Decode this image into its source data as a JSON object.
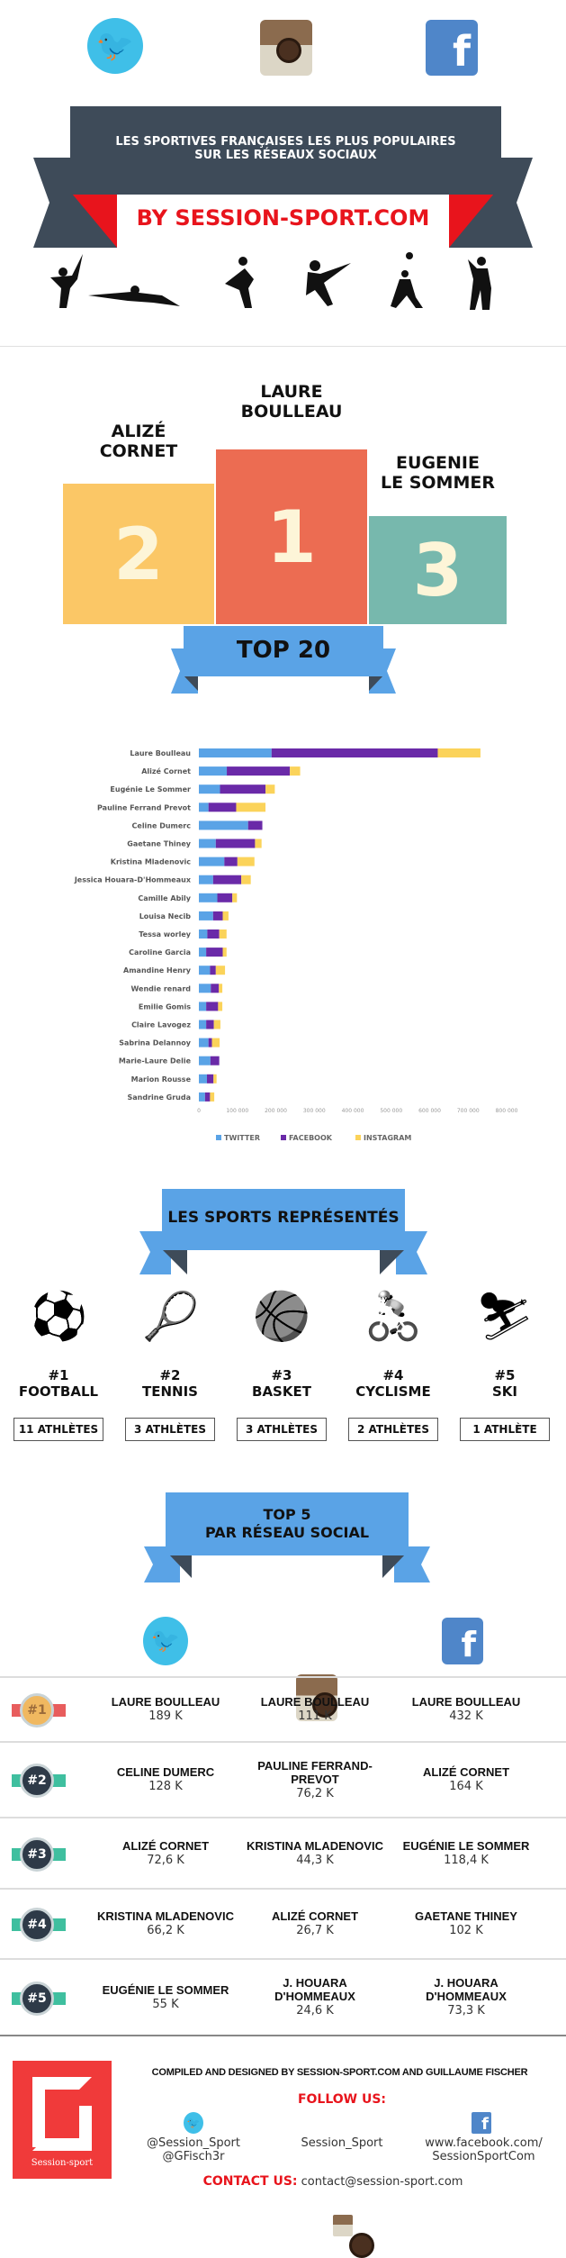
{
  "header": {
    "icons": [
      "twitter-icon",
      "instagram-icon",
      "facebook-icon"
    ],
    "title_line1": "Les sportives françaises les plus populaires",
    "title_line2": "sur les réseaux sociaux",
    "byline": "By session-sport.com",
    "colors": {
      "banner": "#3e4b59",
      "accent": "#e8141c"
    }
  },
  "podium": [
    {
      "rank": "2",
      "name_line1": "Alizé",
      "name_line2": "Cornet",
      "color": "#fbc766"
    },
    {
      "rank": "1",
      "name_line1": "Laure",
      "name_line2": "Boulleau",
      "color": "#ec6c52"
    },
    {
      "rank": "3",
      "name_line1": "Eugenie",
      "name_line2": "Le Sommer",
      "color": "#77b8ad"
    }
  ],
  "top20_title": "TOP 20",
  "chart_data": {
    "type": "bar",
    "orientation": "horizontal",
    "stacked": true,
    "categories": [
      "Laure Boulleau",
      "Alizé Cornet",
      "Eugénie Le Sommer",
      "Pauline Ferrand Prevot",
      "Celine Dumerc",
      "Gaetane Thiney",
      "Kristina Mladenovic",
      "Jessica Houara-D'Hommeaux",
      "Camille Abily",
      "Louisa Necib",
      "Tessa worley",
      "Caroline Garcia",
      "Amandine Henry",
      "Wendie renard",
      "Emilie Gomis",
      "Claire Lavogez",
      "Sabrina Delannoy",
      "Marie-Laure Delie",
      "Marion Rousse",
      "Sandrine Gruda"
    ],
    "series": [
      {
        "name": "TWITTER",
        "color": "#5aa3e6",
        "values": [
          189000,
          72600,
          55000,
          25000,
          128000,
          44000,
          66200,
          37000,
          48000,
          37000,
          22000,
          19000,
          29000,
          31000,
          19000,
          19000,
          25000,
          30000,
          21000,
          16000
        ]
      },
      {
        "name": "FACEBOOK",
        "color": "#6a2aa8",
        "values": [
          432000,
          164000,
          118400,
          72000,
          37000,
          102000,
          34000,
          73300,
          39000,
          25000,
          31000,
          43000,
          15000,
          21000,
          31000,
          20000,
          9000,
          23000,
          17000,
          13000
        ]
      },
      {
        "name": "INSTAGRAM",
        "color": "#fbd35a",
        "values": [
          111000,
          26700,
          24000,
          76200,
          0,
          17000,
          44300,
          24600,
          12000,
          15000,
          19000,
          10000,
          24000,
          9000,
          11000,
          17000,
          20000,
          0,
          8000,
          11000
        ]
      }
    ],
    "xlim": [
      0,
      800000
    ],
    "xticks": [
      "0",
      "100 000",
      "200 000",
      "300 000",
      "400 000",
      "500 000",
      "600 000",
      "700 000",
      "800 000"
    ],
    "legend_position": "bottom",
    "grid": false
  },
  "sports": {
    "title": "Les sports représentés",
    "items": [
      {
        "rank": "#1",
        "name": "Football",
        "count": "11 athlètes",
        "icon": "soccer-ball-icon"
      },
      {
        "rank": "#2",
        "name": "Tennis",
        "count": "3 athlètes",
        "icon": "tennis-racket-icon"
      },
      {
        "rank": "#3",
        "name": "Basket",
        "count": "3 athlètes",
        "icon": "basketball-icon"
      },
      {
        "rank": "#4",
        "name": "Cyclisme",
        "count": "2 athlètes",
        "icon": "cyclist-icon"
      },
      {
        "rank": "#5",
        "name": "Ski",
        "count": "1 athlète",
        "icon": "skier-icon"
      }
    ]
  },
  "top5": {
    "title_line1": "TOP 5",
    "title_line2": "par réseau social",
    "rows": [
      {
        "rank": "#1",
        "twitter": {
          "name": "Laure Boulleau",
          "value": "189 K"
        },
        "instagram": {
          "name": "Laure Boulleau",
          "value": "111 K"
        },
        "facebook": {
          "name": "Laure Boulleau",
          "value": "432 K"
        }
      },
      {
        "rank": "#2",
        "twitter": {
          "name": "Celine Dumerc",
          "value": "128 K"
        },
        "instagram": {
          "name": "Pauline Ferrand-Prevot",
          "value": "76,2 K"
        },
        "facebook": {
          "name": "Alizé Cornet",
          "value": "164 K"
        }
      },
      {
        "rank": "#3",
        "twitter": {
          "name": "Alizé Cornet",
          "value": "72,6 K"
        },
        "instagram": {
          "name": "Kristina Mladenovic",
          "value": "44,3 K"
        },
        "facebook": {
          "name": "Eugénie Le Sommer",
          "value": "118,4 K"
        }
      },
      {
        "rank": "#4",
        "twitter": {
          "name": "Kristina Mladenovic",
          "value": "66,2 K"
        },
        "instagram": {
          "name": "Alizé Cornet",
          "value": "26,7 K"
        },
        "facebook": {
          "name": "Gaetane Thiney",
          "value": "102 K"
        }
      },
      {
        "rank": "#5",
        "twitter": {
          "name": "Eugénie Le Sommer",
          "value": "55 K"
        },
        "instagram": {
          "name": "J. Houara D'Hommeaux",
          "value": "24,6 K"
        },
        "facebook": {
          "name": "J. Houara D'Hommeaux",
          "value": "73,3 K"
        }
      }
    ]
  },
  "footer": {
    "logo_text": "Session-sport",
    "credits": "Compiled and designed by session-sport.com and Guillaume Fischer",
    "follow": "Follow us:",
    "twitter_line1": "@Session_Sport",
    "twitter_line2": "@GFisch3r",
    "instagram": "Session_Sport",
    "facebook_line1": "www.facebook.com/",
    "facebook_line2": "SessionSportCom",
    "contact_label": "Contact us:",
    "contact_email": "contact@session-sport.com"
  }
}
